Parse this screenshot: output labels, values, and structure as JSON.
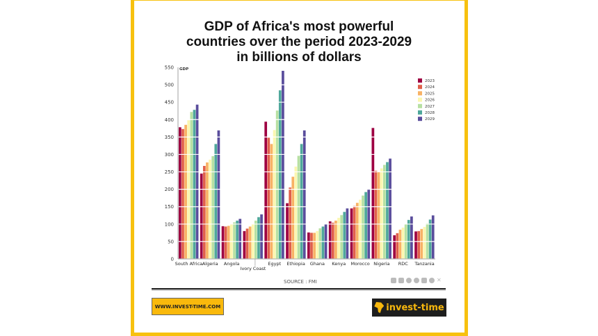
{
  "chart_data": {
    "type": "bar",
    "title": "GDP of Africa's most powerful countries over the period 2023-2029 in billions of dollars",
    "title_lines": [
      "GDP of Africa's most powerful",
      "countries over the period 2023-2029",
      "in billions of dollars"
    ],
    "ylabel": "GDP",
    "xlabel": "",
    "ylim": [
      0,
      550
    ],
    "yticks": [
      0,
      50,
      100,
      150,
      200,
      250,
      300,
      350,
      400,
      450,
      500,
      550
    ],
    "grid": true,
    "legend_position": "top-right",
    "categories": [
      "South Africa",
      "Algeria",
      "Angola",
      "Ivory Coast",
      "Egypt",
      "Ethiopia",
      "Ghana",
      "Kenya",
      "Morocco",
      "Nigeria",
      "RDC",
      "Tanzania"
    ],
    "series": [
      {
        "name": "2023",
        "color": "#9e0142",
        "values": [
          378,
          245,
          94,
          80,
          394,
          160,
          76,
          108,
          145,
          376,
          68,
          79
        ]
      },
      {
        "name": "2024",
        "color": "#e0604b",
        "values": [
          373,
          267,
          93,
          87,
          348,
          205,
          75,
          104,
          152,
          253,
          74,
          80
        ]
      },
      {
        "name": "2025",
        "color": "#f8b265",
        "values": [
          385,
          277,
          95,
          93,
          330,
          236,
          75,
          110,
          161,
          250,
          84,
          86
        ]
      },
      {
        "name": "2026",
        "color": "#fbf7b0",
        "values": [
          398,
          285,
          100,
          100,
          370,
          265,
          80,
          118,
          170,
          260,
          90,
          92
        ]
      },
      {
        "name": "2027",
        "color": "#b7e0a2",
        "values": [
          422,
          295,
          105,
          110,
          426,
          296,
          88,
          126,
          182,
          270,
          100,
          102
        ]
      },
      {
        "name": "2028",
        "color": "#4fa89b",
        "values": [
          428,
          330,
          110,
          120,
          484,
          330,
          93,
          135,
          192,
          278,
          112,
          113
        ]
      },
      {
        "name": "2029",
        "color": "#5a4d9c",
        "values": [
          443,
          369,
          115,
          128,
          540,
          369,
          100,
          145,
          200,
          288,
          122,
          125
        ]
      }
    ]
  },
  "footer": {
    "source": "SOURCE : FMI",
    "website": "WWW.INVEST-TIME.COM",
    "logo_text": "invest-time",
    "social_icons": [
      "linkedin-icon",
      "youtube-icon",
      "telegram-icon",
      "whatsapp-icon",
      "instagram-icon",
      "facebook-icon",
      "x-icon"
    ]
  }
}
